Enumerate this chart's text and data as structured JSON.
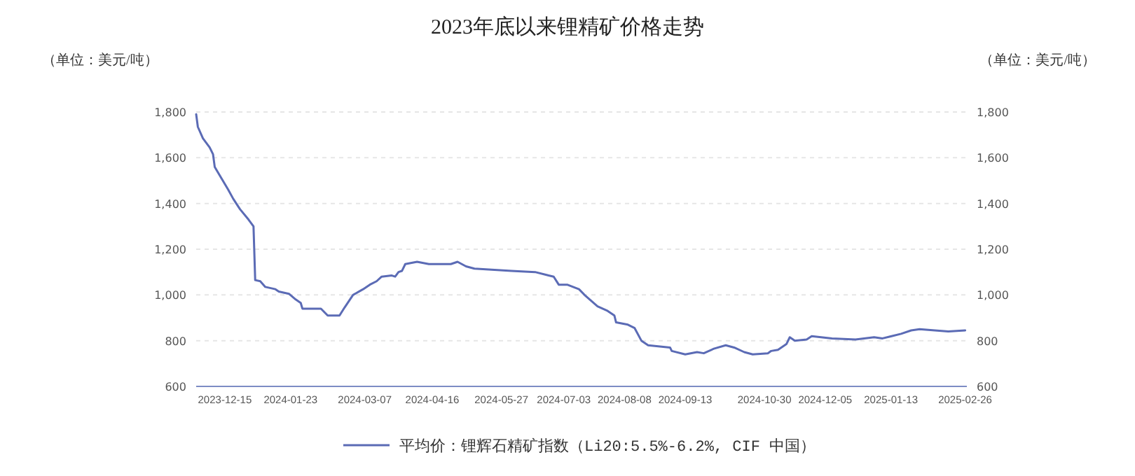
{
  "chart_data": {
    "type": "line",
    "title": "2023年底以来锂精矿价格走势",
    "ylabel": "（单位：美元/吨）",
    "y2label": "（单位：美元/吨）",
    "x": [
      "2023-11-28",
      "2023-11-29",
      "2023-12-02",
      "2023-12-06",
      "2023-12-08",
      "2023-12-09",
      "2023-12-13",
      "2023-12-17",
      "2023-12-20",
      "2023-12-24",
      "2023-12-29",
      "2024-01-01",
      "2024-01-02",
      "2024-01-05",
      "2024-01-08",
      "2024-01-14",
      "2024-01-16",
      "2024-01-22",
      "2024-01-26",
      "2024-01-29",
      "2024-01-30",
      "2024-02-10",
      "2024-02-14",
      "2024-02-21",
      "2024-02-24",
      "2024-02-29",
      "2024-03-06",
      "2024-03-10",
      "2024-03-14",
      "2024-03-17",
      "2024-03-23",
      "2024-03-25",
      "2024-03-27",
      "2024-03-29",
      "2024-03-31",
      "2024-04-07",
      "2024-04-14",
      "2024-04-27",
      "2024-05-01",
      "2024-05-06",
      "2024-05-11",
      "2024-06-02",
      "2024-06-16",
      "2024-06-24",
      "2024-06-27",
      "2024-06-30",
      "2024-07-05",
      "2024-07-12",
      "2024-07-16",
      "2024-07-23",
      "2024-07-29",
      "2024-08-02",
      "2024-08-03",
      "2024-08-10",
      "2024-08-14",
      "2024-08-18",
      "2024-08-22",
      "2024-09-04",
      "2024-09-05",
      "2024-09-13",
      "2024-09-20",
      "2024-09-24",
      "2024-09-30",
      "2024-10-07",
      "2024-10-12",
      "2024-10-18",
      "2024-10-23",
      "2024-11-01",
      "2024-11-03",
      "2024-11-07",
      "2024-11-12",
      "2024-11-14",
      "2024-11-17",
      "2024-11-24",
      "2024-11-27",
      "2024-12-09",
      "2024-12-23",
      "2025-01-03",
      "2025-01-08",
      "2025-01-19",
      "2025-01-25",
      "2025-01-30",
      "2025-02-08",
      "2025-02-16",
      "2025-02-26"
    ],
    "series": [
      {
        "name": "平均价：锂辉石精矿指数（Li20:5.5%-6.2%, CIF 中国）",
        "color": "#5b6bb5",
        "values": [
          1790,
          1735,
          1685,
          1645,
          1615,
          1560,
          1510,
          1460,
          1420,
          1375,
          1330,
          1300,
          1065,
          1060,
          1035,
          1025,
          1015,
          1005,
          980,
          965,
          940,
          940,
          910,
          910,
          945,
          1000,
          1025,
          1045,
          1060,
          1080,
          1085,
          1080,
          1100,
          1105,
          1135,
          1145,
          1135,
          1135,
          1145,
          1125,
          1115,
          1105,
          1100,
          1085,
          1080,
          1045,
          1045,
          1025,
          995,
          950,
          930,
          910,
          880,
          870,
          855,
          800,
          780,
          770,
          755,
          740,
          750,
          745,
          765,
          780,
          770,
          750,
          740,
          745,
          755,
          760,
          785,
          815,
          800,
          805,
          820,
          810,
          805,
          815,
          810,
          830,
          845,
          850,
          845,
          840,
          845
        ]
      }
    ],
    "xlim": [
      "2023-11-28",
      "2025-02-27"
    ],
    "xticks": [
      "2023-12-15",
      "2024-01-23",
      "2024-03-07",
      "2024-04-16",
      "2024-05-27",
      "2024-07-03",
      "2024-08-08",
      "2024-09-13",
      "2024-10-30",
      "2024-12-05",
      "2025-01-13",
      "2025-02-26"
    ],
    "ylim": [
      600,
      1800
    ],
    "yticks": [
      600,
      800,
      {
        "value": 1000,
        "label": "1,000"
      },
      {
        "value": 1200,
        "label": "1,200"
      },
      {
        "value": 1400,
        "label": "1,400"
      },
      {
        "value": 1600,
        "label": "1,600"
      },
      {
        "value": 1800,
        "label": "1,800"
      }
    ],
    "y2lim": [
      600,
      1800
    ],
    "y2ticks": [
      600,
      800,
      {
        "value": 1000,
        "label": "1,000"
      },
      {
        "value": 1200,
        "label": "1,200"
      },
      {
        "value": 1400,
        "label": "1,400"
      },
      {
        "value": 1600,
        "label": "1,600"
      },
      {
        "value": 1800,
        "label": "1,800"
      }
    ],
    "grid": "y",
    "legend": "bottom"
  }
}
